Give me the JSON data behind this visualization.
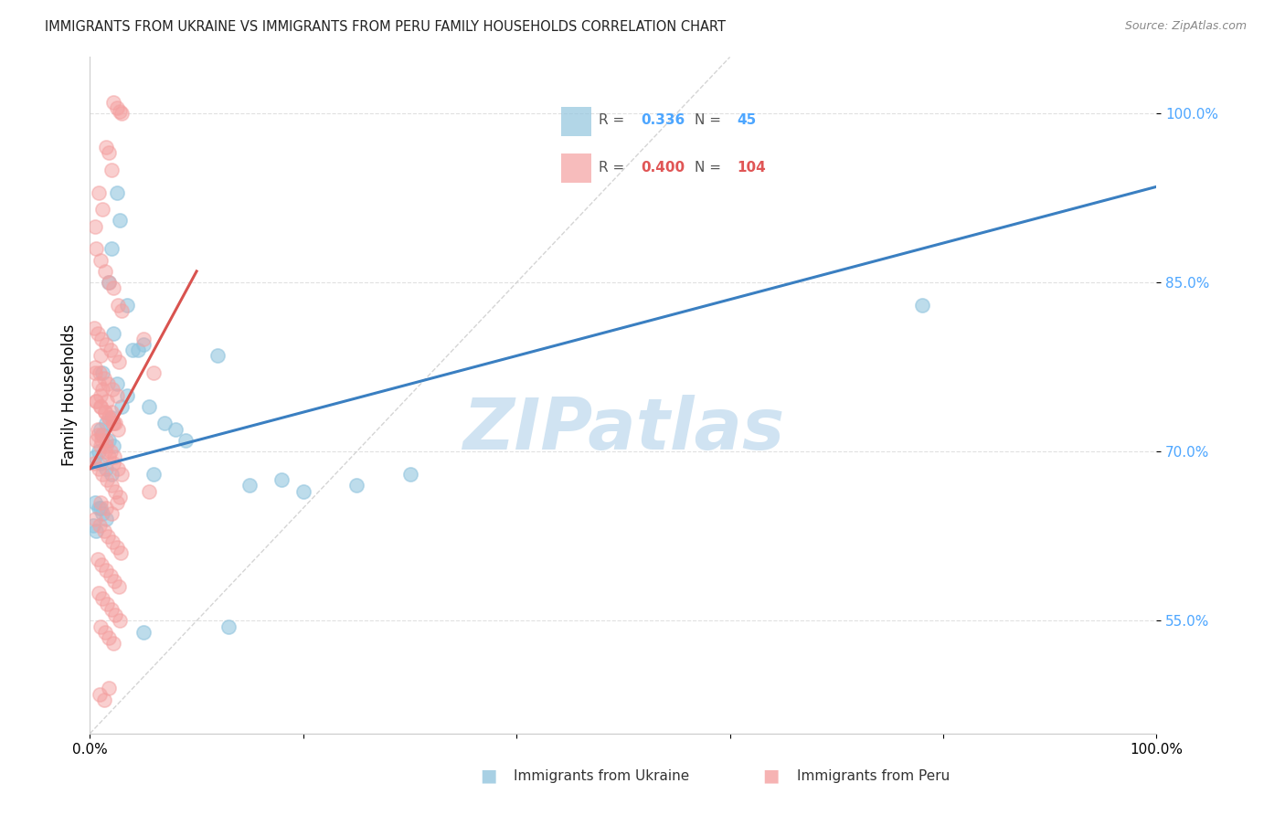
{
  "title": "IMMIGRANTS FROM UKRAINE VS IMMIGRANTS FROM PERU FAMILY HOUSEHOLDS CORRELATION CHART",
  "source": "Source: ZipAtlas.com",
  "ylabel": "Family Households",
  "xlim": [
    0,
    100
  ],
  "ylim": [
    45,
    105
  ],
  "ukraine_R": 0.336,
  "ukraine_N": 45,
  "peru_R": 0.4,
  "peru_N": 104,
  "ukraine_color": "#92c5de",
  "peru_color": "#f4a0a0",
  "ukraine_line_color": "#3a7fc1",
  "peru_line_color": "#d9534f",
  "diagonal_color": "#d0d0d0",
  "watermark": "ZIPatlas",
  "watermark_zip_color": "#c5daf0",
  "watermark_atlas_color": "#d8e8f5",
  "legend_ukraine_label": "Immigrants from Ukraine",
  "legend_peru_label": "Immigrants from Peru",
  "ukraine_line_x0": 0,
  "ukraine_line_y0": 68.5,
  "ukraine_line_x1": 100,
  "ukraine_line_y1": 93.5,
  "peru_line_x0": 0,
  "peru_line_y0": 68.5,
  "peru_line_x1": 10,
  "peru_line_y1": 86.0,
  "diag_x0": 0,
  "diag_y0": 45,
  "diag_x1": 60,
  "diag_y1": 105,
  "ukraine_scatter_x": [
    2.5,
    2.8,
    2.0,
    1.8,
    3.5,
    2.2,
    4.0,
    5.0,
    1.2,
    2.5,
    3.5,
    3.0,
    2.0,
    1.5,
    1.0,
    1.2,
    1.8,
    2.2,
    0.8,
    0.5,
    1.0,
    1.5,
    2.0,
    4.5,
    5.5,
    7.0,
    8.0,
    9.0,
    12.0,
    15.0,
    18.0,
    20.0,
    25.0,
    30.0,
    78.0,
    1.0,
    0.5,
    0.8,
    1.2,
    1.5,
    0.3,
    0.6,
    6.0,
    13.0,
    5.0
  ],
  "ukraine_scatter_y": [
    93.0,
    90.5,
    88.0,
    85.0,
    83.0,
    80.5,
    79.0,
    79.5,
    77.0,
    76.0,
    75.0,
    74.0,
    73.0,
    72.5,
    72.0,
    71.5,
    71.0,
    70.5,
    70.0,
    69.5,
    69.0,
    68.5,
    68.0,
    79.0,
    74.0,
    72.5,
    72.0,
    71.0,
    78.5,
    67.0,
    67.5,
    66.5,
    67.0,
    68.0,
    83.0,
    65.0,
    65.5,
    65.0,
    64.5,
    64.0,
    63.5,
    63.0,
    68.0,
    54.5,
    54.0
  ],
  "peru_scatter_x": [
    2.2,
    2.5,
    2.8,
    3.0,
    1.5,
    1.8,
    2.0,
    0.8,
    1.2,
    0.5,
    0.6,
    1.0,
    1.4,
    1.8,
    2.2,
    2.6,
    3.0,
    0.4,
    0.7,
    1.1,
    1.5,
    1.9,
    2.3,
    2.7,
    0.5,
    0.9,
    1.3,
    1.7,
    2.1,
    2.5,
    0.6,
    1.0,
    1.4,
    1.8,
    2.2,
    2.6,
    0.7,
    1.1,
    1.5,
    1.9,
    2.3,
    5.0,
    1.0,
    0.5,
    0.8,
    1.2,
    1.6,
    2.0,
    2.4,
    6.0,
    0.4,
    0.8,
    1.2,
    1.6,
    2.0,
    2.4,
    2.8,
    1.0,
    1.5,
    2.0,
    0.6,
    1.0,
    1.4,
    1.8,
    2.2,
    2.6,
    3.0,
    0.5,
    0.9,
    1.3,
    1.7,
    2.1,
    2.5,
    2.9,
    0.7,
    1.1,
    1.5,
    1.9,
    2.3,
    2.7,
    0.8,
    1.2,
    1.6,
    2.0,
    2.4,
    2.8,
    1.0,
    1.4,
    1.8,
    2.2,
    5.5,
    1.0,
    0.6,
    1.0,
    1.4,
    1.8,
    2.2,
    0.7,
    1.1,
    1.5,
    2.5,
    1.8,
    0.9,
    1.3
  ],
  "peru_scatter_y": [
    101.0,
    100.5,
    100.2,
    100.0,
    97.0,
    96.5,
    95.0,
    93.0,
    91.5,
    90.0,
    88.0,
    87.0,
    86.0,
    85.0,
    84.5,
    83.0,
    82.5,
    81.0,
    80.5,
    80.0,
    79.5,
    79.0,
    78.5,
    78.0,
    77.5,
    77.0,
    76.5,
    76.0,
    75.5,
    75.0,
    74.5,
    74.0,
    73.5,
    73.0,
    72.5,
    72.0,
    71.5,
    71.0,
    70.5,
    70.0,
    69.5,
    80.0,
    78.5,
    77.0,
    76.0,
    75.5,
    74.5,
    73.5,
    72.5,
    77.0,
    69.0,
    68.5,
    68.0,
    67.5,
    67.0,
    66.5,
    66.0,
    65.5,
    65.0,
    64.5,
    71.0,
    70.5,
    70.0,
    69.5,
    69.0,
    68.5,
    68.0,
    64.0,
    63.5,
    63.0,
    62.5,
    62.0,
    61.5,
    61.0,
    60.5,
    60.0,
    59.5,
    59.0,
    58.5,
    58.0,
    57.5,
    57.0,
    56.5,
    56.0,
    55.5,
    55.0,
    54.5,
    54.0,
    53.5,
    53.0,
    66.5,
    75.0,
    74.5,
    74.0,
    73.5,
    73.0,
    72.5,
    72.0,
    71.5,
    71.0,
    65.5,
    49.0,
    48.5,
    48.0
  ]
}
